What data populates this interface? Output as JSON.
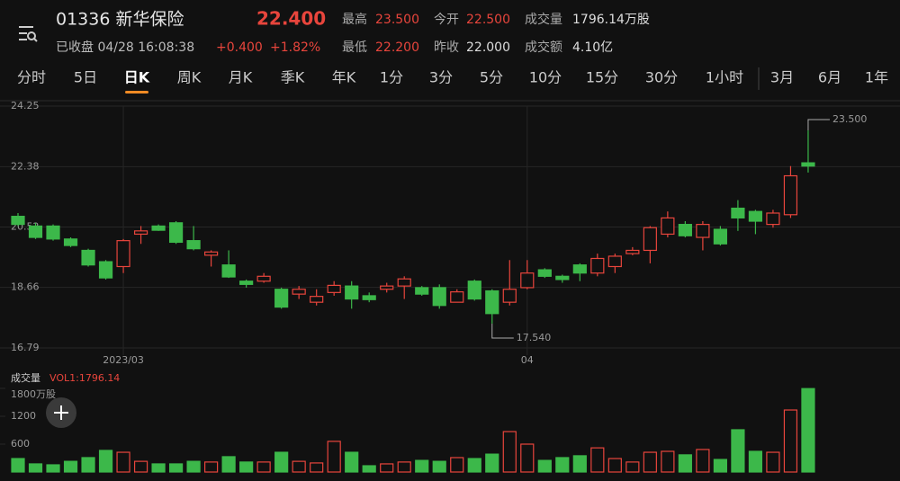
{
  "header": {
    "symbol": "01336 新华保险",
    "price": "22.400",
    "status": "已收盘 04/28 16:08:38",
    "change": "+0.400",
    "change_pct": "+1.82%",
    "stats": [
      {
        "label": "最高",
        "value": "23.500"
      },
      {
        "label": "今开",
        "value": "22.500"
      },
      {
        "label": "成交量",
        "value": "1796.14万股"
      },
      {
        "label": "最低",
        "value": "22.200"
      },
      {
        "label": "昨收",
        "value": "22.000"
      },
      {
        "label": "成交额",
        "value": "4.10亿"
      }
    ]
  },
  "tabs": [
    "分时",
    "5日",
    "日K",
    "周K",
    "月K",
    "季K",
    "年K",
    "1分",
    "3分",
    "5分",
    "10分",
    "15分",
    "30分",
    "1小时",
    "3月",
    "6月",
    "1年"
  ],
  "active_tab": 2,
  "chart_data": [
    {
      "type": "candlestick",
      "categories": [
        null,
        null,
        null,
        null,
        null,
        null,
        "2023/03",
        null,
        null,
        null,
        null,
        null,
        null,
        null,
        null,
        null,
        null,
        null,
        null,
        null,
        null,
        null,
        null,
        null,
        null,
        null,
        null,
        null,
        null,
        "04",
        null,
        null,
        null,
        null,
        null,
        null,
        null,
        null,
        null,
        null,
        null,
        null,
        null,
        null,
        null,
        null
      ],
      "open": [
        20.85,
        20.55,
        20.55,
        20.15,
        19.8,
        19.45,
        19.3,
        20.3,
        20.55,
        20.65,
        20.1,
        19.65,
        19.35,
        18.85,
        18.85,
        18.6,
        18.45,
        18.2,
        18.5,
        18.7,
        18.4,
        18.6,
        18.7,
        18.65,
        18.65,
        18.2,
        18.85,
        18.55,
        18.2,
        18.65,
        19.2,
        19.0,
        19.35,
        19.1,
        19.3,
        19.7,
        19.8,
        20.3,
        20.6,
        20.2,
        20.45,
        21.1,
        21.0,
        20.6,
        20.9,
        22.5
      ],
      "high": [
        20.95,
        20.65,
        20.6,
        20.2,
        19.85,
        19.5,
        20.15,
        20.55,
        20.6,
        20.7,
        20.55,
        19.8,
        19.8,
        18.9,
        19.1,
        18.65,
        18.7,
        18.6,
        18.85,
        18.85,
        18.5,
        18.8,
        19.0,
        18.7,
        18.75,
        18.6,
        18.9,
        18.6,
        19.5,
        19.5,
        19.25,
        19.05,
        19.4,
        19.7,
        19.7,
        19.9,
        20.55,
        21.0,
        20.7,
        20.7,
        20.55,
        21.35,
        21.05,
        21.05,
        22.4,
        23.5
      ],
      "low": [
        20.55,
        20.15,
        20.1,
        19.9,
        19.3,
        18.9,
        19.1,
        20.0,
        20.4,
        20.0,
        19.8,
        19.3,
        18.95,
        18.65,
        18.8,
        18.0,
        18.3,
        18.1,
        18.4,
        18.0,
        18.2,
        18.5,
        18.3,
        18.4,
        18.0,
        18.2,
        18.25,
        17.54,
        18.1,
        18.6,
        18.95,
        18.8,
        18.85,
        19.0,
        19.1,
        19.65,
        19.4,
        20.2,
        20.2,
        19.8,
        19.95,
        20.4,
        20.3,
        20.5,
        20.8,
        22.2
      ],
      "close": [
        20.6,
        20.2,
        20.15,
        19.95,
        19.35,
        18.95,
        20.1,
        20.4,
        20.42,
        20.05,
        19.85,
        19.75,
        18.98,
        18.75,
        19.0,
        18.05,
        18.6,
        18.38,
        18.72,
        18.3,
        18.28,
        18.7,
        18.92,
        18.45,
        18.1,
        18.52,
        18.3,
        17.85,
        18.6,
        19.1,
        19.0,
        18.9,
        19.1,
        19.55,
        19.62,
        19.8,
        20.5,
        20.8,
        20.25,
        20.6,
        20.0,
        20.8,
        20.7,
        20.95,
        22.1,
        22.4
      ],
      "ylim": [
        16.79,
        24.25
      ],
      "yticks": [
        24.25,
        22.38,
        20.52,
        18.66,
        16.79
      ],
      "grid": true,
      "up_color": "#e8453c",
      "down_color": "#3cb84a",
      "annotations": [
        {
          "value": 23.5,
          "label": "23.500"
        },
        {
          "value": 17.54,
          "label": "17.540"
        }
      ]
    },
    {
      "type": "bar",
      "title": "成交量",
      "subtitle": "VOL1:1796.14",
      "values": [
        290,
        175,
        155,
        230,
        310,
        465,
        425,
        230,
        175,
        175,
        230,
        215,
        330,
        215,
        215,
        425,
        230,
        195,
        660,
        425,
        135,
        175,
        215,
        250,
        230,
        310,
        290,
        385,
        870,
        600,
        250,
        310,
        350,
        520,
        290,
        215,
        425,
        445,
        370,
        485,
        270,
        910,
        445,
        425,
        1335,
        1796.14
      ],
      "ylim": [
        0,
        1800
      ],
      "yticks": [
        600,
        1200,
        {
          "value": 1800,
          "label": "1800万股"
        }
      ]
    }
  ]
}
